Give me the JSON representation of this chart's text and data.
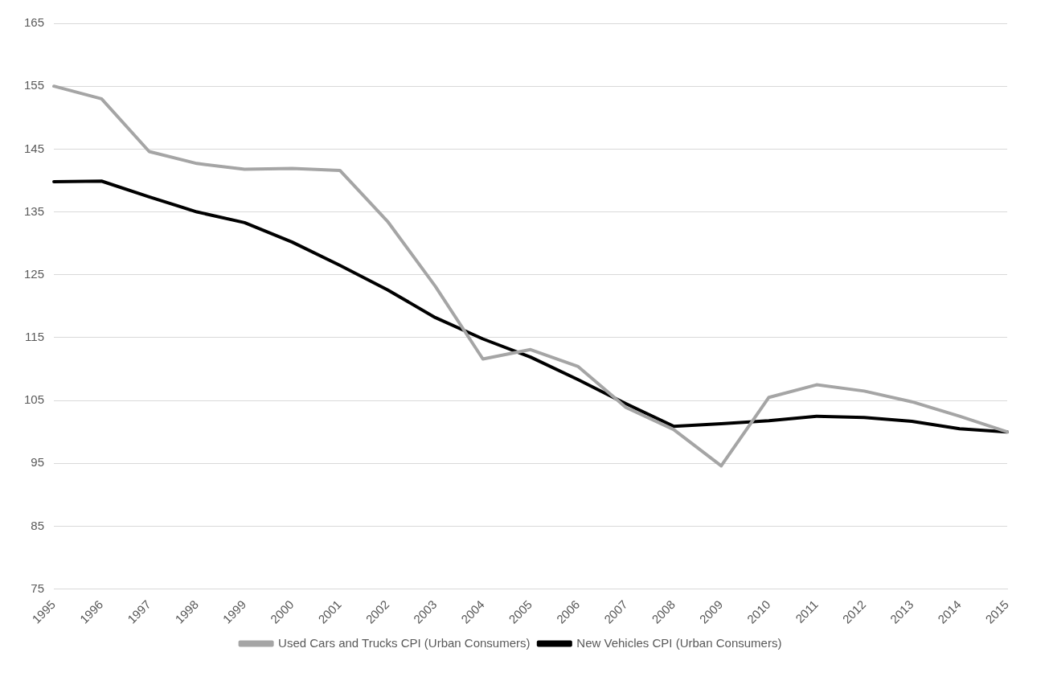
{
  "chart_data": {
    "type": "line",
    "categories": [
      "1995",
      "1996",
      "1997",
      "1998",
      "1999",
      "2000",
      "2001",
      "2002",
      "2003",
      "2004",
      "2005",
      "2006",
      "2007",
      "2008",
      "2009",
      "2010",
      "2011",
      "2012",
      "2013",
      "2014",
      "2015"
    ],
    "series": [
      {
        "name": "Used Cars and Trucks CPI (Urban Consumers)",
        "color": "#a5a5a5",
        "values": [
          155.0,
          153.0,
          144.6,
          142.7,
          141.8,
          141.9,
          141.6,
          133.5,
          123.2,
          111.6,
          113.1,
          110.4,
          103.9,
          100.4,
          94.6,
          105.5,
          107.5,
          106.5,
          104.8,
          102.5,
          100
        ]
      },
      {
        "name": "New Vehicles CPI (Urban Consumers)",
        "color": "#000000",
        "values": [
          139.8,
          139.9,
          137.4,
          135.0,
          133.3,
          130.2,
          126.5,
          122.6,
          118.2,
          114.8,
          111.9,
          108.3,
          104.5,
          100.9,
          101.3,
          101.8,
          102.5,
          102.3,
          101.7,
          100.5,
          100
        ]
      }
    ],
    "ylim": [
      75,
      165
    ],
    "yticks": [
      75,
      85,
      95,
      105,
      115,
      125,
      135,
      145,
      155,
      165
    ],
    "grid": "y",
    "legend": "bottom",
    "marker": "none",
    "line_style": "solid"
  }
}
